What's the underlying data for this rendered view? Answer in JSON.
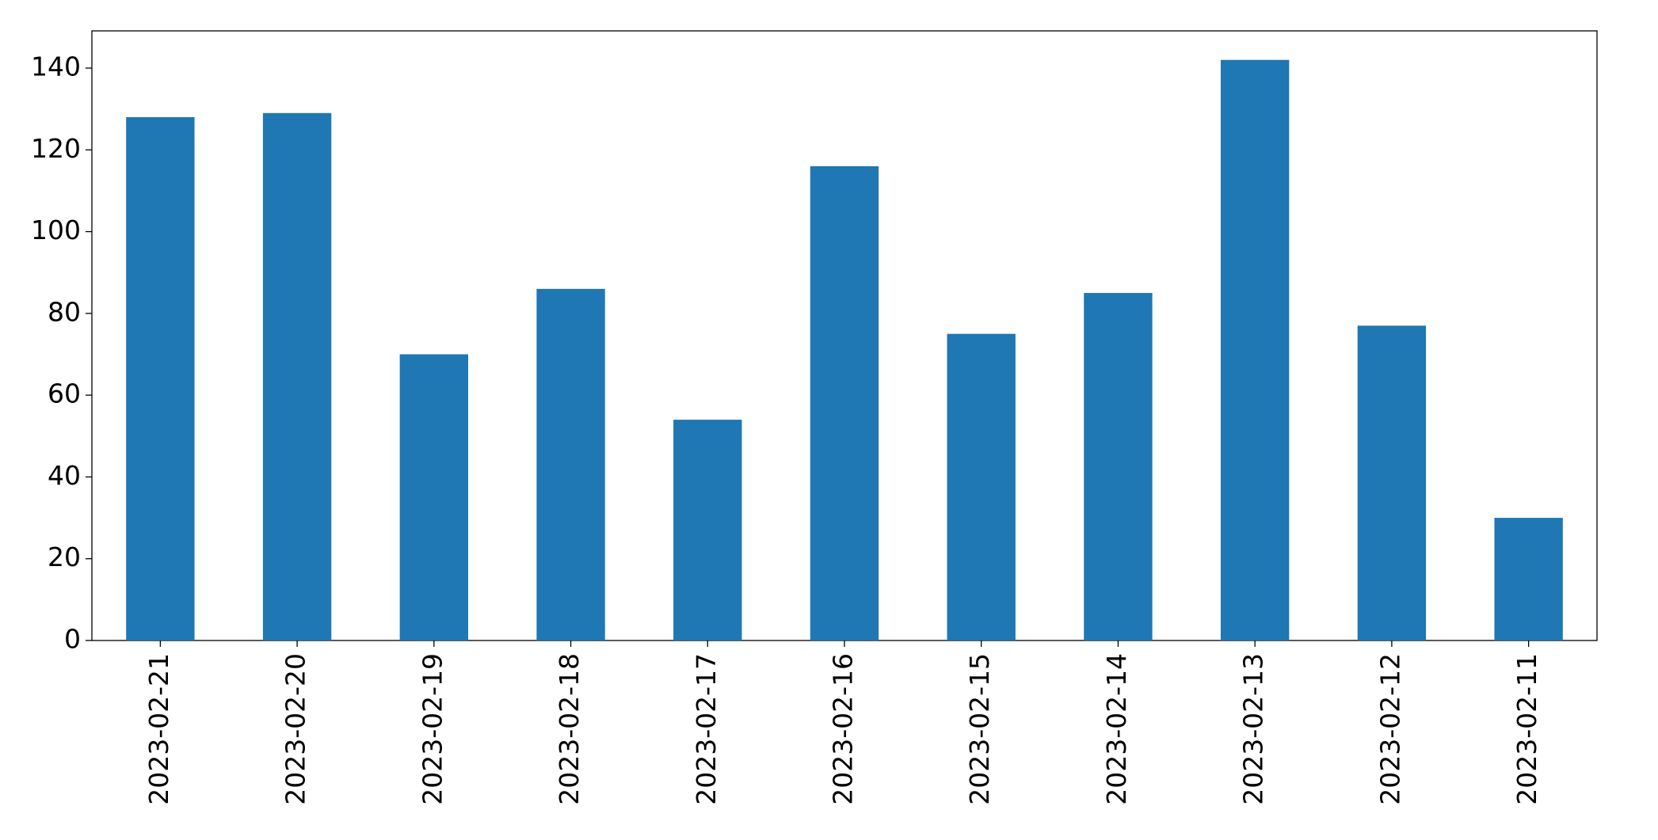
{
  "chart_data": {
    "type": "bar",
    "categories": [
      "2023-02-21",
      "2023-02-20",
      "2023-02-19",
      "2023-02-18",
      "2023-02-17",
      "2023-02-16",
      "2023-02-15",
      "2023-02-14",
      "2023-02-13",
      "2023-02-12",
      "2023-02-11"
    ],
    "values": [
      128,
      129,
      70,
      86,
      54,
      116,
      75,
      85,
      142,
      77,
      30
    ],
    "color": "#1f77b4",
    "ylim": [
      0,
      149.1
    ],
    "yticks": [
      0,
      20,
      40,
      60,
      80,
      100,
      120,
      140
    ],
    "grid": false
  }
}
